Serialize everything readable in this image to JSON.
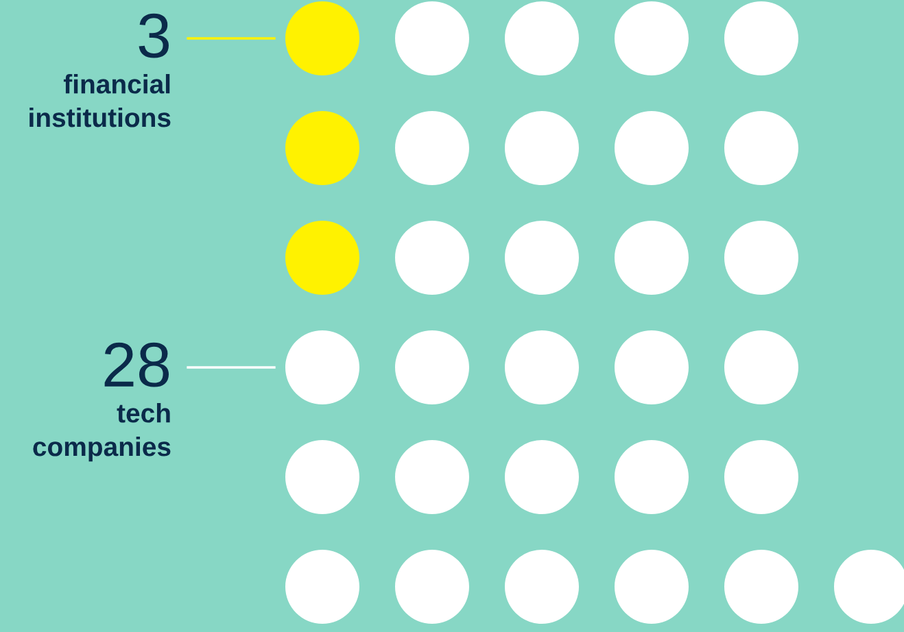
{
  "chart_data": {
    "type": "other",
    "categories": [
      "financial institutions",
      "tech companies"
    ],
    "values": [
      3,
      28
    ],
    "value_labels": [
      "3",
      "28"
    ],
    "colors": [
      "#fff200",
      "#ffffff"
    ]
  }
}
